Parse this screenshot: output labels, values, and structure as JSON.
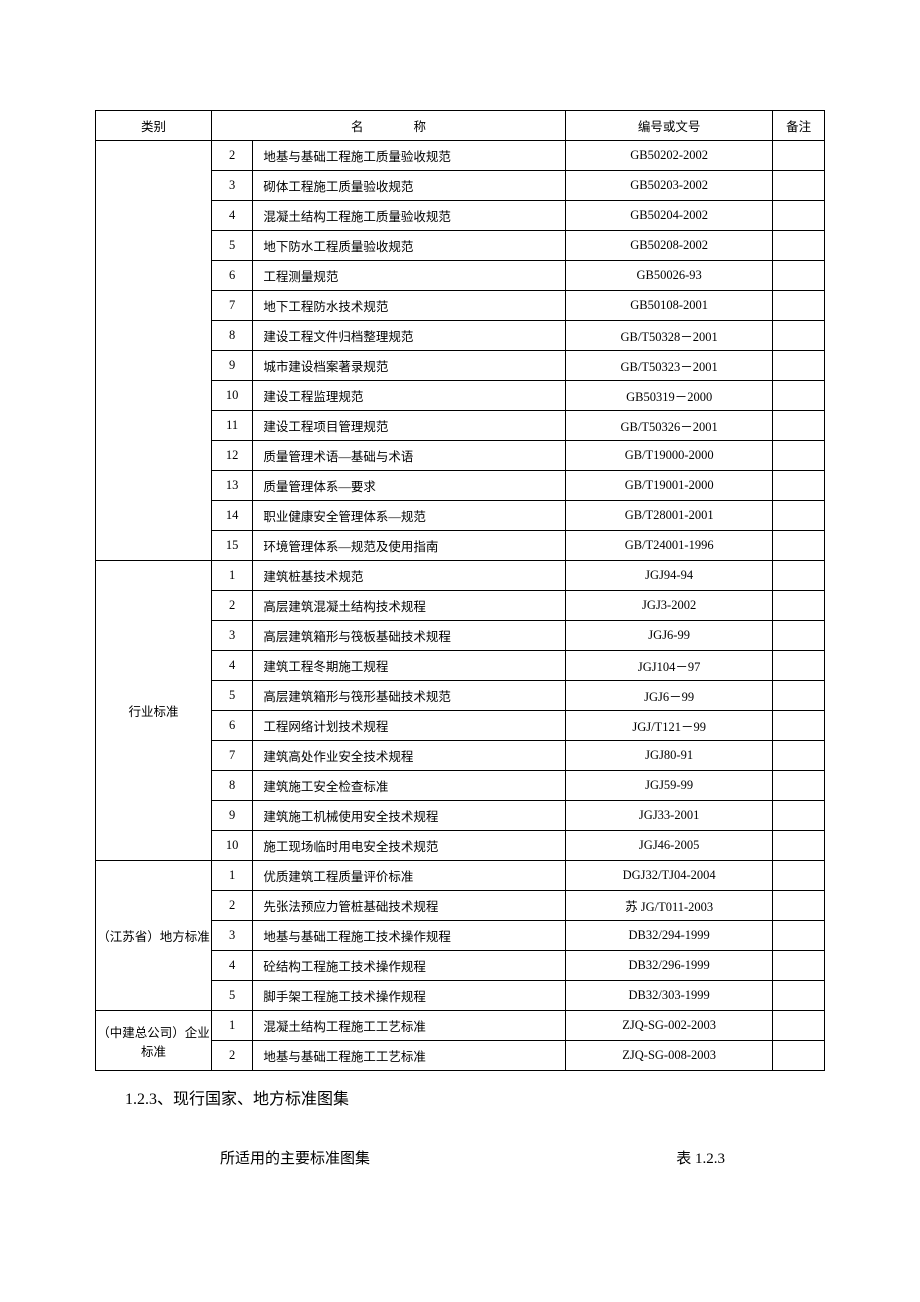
{
  "header": {
    "category": "类别",
    "name_char1": "名",
    "name_char2": "称",
    "code": "编号或文号",
    "remark": "备注"
  },
  "groups": [
    {
      "category": "",
      "rows": [
        {
          "num": "2",
          "name": "地基与基础工程施工质量验收规范",
          "code": "GB50202-2002"
        },
        {
          "num": "3",
          "name": "砌体工程施工质量验收规范",
          "code": "GB50203-2002"
        },
        {
          "num": "4",
          "name": "混凝土结构工程施工质量验收规范",
          "code": "GB50204-2002"
        },
        {
          "num": "5",
          "name": "地下防水工程质量验收规范",
          "code": "GB50208-2002"
        },
        {
          "num": "6",
          "name": "工程测量规范",
          "code": "GB50026-93"
        },
        {
          "num": "7",
          "name": "地下工程防水技术规范",
          "code": "GB50108-2001"
        },
        {
          "num": "8",
          "name": "建设工程文件归档整理规范",
          "code": "GB/T50328－2001"
        },
        {
          "num": "9",
          "name": "城市建设档案著录规范",
          "code": "GB/T50323－2001"
        },
        {
          "num": "10",
          "name": "建设工程监理规范",
          "code": "GB50319－2000"
        },
        {
          "num": "11",
          "name": "建设工程项目管理规范",
          "code": "GB/T50326－2001"
        },
        {
          "num": "12",
          "name": "质量管理术语—基础与术语",
          "code": "GB/T19000-2000"
        },
        {
          "num": "13",
          "name": "质量管理体系—要求",
          "code": "GB/T19001-2000"
        },
        {
          "num": "14",
          "name": "职业健康安全管理体系—规范",
          "code": "GB/T28001-2001"
        },
        {
          "num": "15",
          "name": "环境管理体系—规范及使用指南",
          "code": "GB/T24001-1996"
        }
      ]
    },
    {
      "category": "行业标准",
      "rows": [
        {
          "num": "1",
          "name": "建筑桩基技术规范",
          "code": "JGJ94-94"
        },
        {
          "num": "2",
          "name": "高层建筑混凝土结构技术规程",
          "code": "JGJ3-2002"
        },
        {
          "num": "3",
          "name": "高层建筑箱形与筏板基础技术规程",
          "code": "JGJ6-99"
        },
        {
          "num": "4",
          "name": "建筑工程冬期施工规程",
          "code": "JGJ104－97"
        },
        {
          "num": "5",
          "name": "高层建筑箱形与筏形基础技术规范",
          "code": "JGJ6－99"
        },
        {
          "num": "6",
          "name": "工程网络计划技术规程",
          "code": "JGJ/T121－99"
        },
        {
          "num": "7",
          "name": "建筑高处作业安全技术规程",
          "code": "JGJ80-91"
        },
        {
          "num": "8",
          "name": "建筑施工安全检查标准",
          "code": "JGJ59-99"
        },
        {
          "num": "9",
          "name": "建筑施工机械使用安全技术规程",
          "code": "JGJ33-2001"
        },
        {
          "num": "10",
          "name": "施工现场临时用电安全技术规范",
          "code": "JGJ46-2005"
        }
      ]
    },
    {
      "category": "（江苏省）地方标准",
      "rows": [
        {
          "num": "1",
          "name": "优质建筑工程质量评价标准",
          "code": "DGJ32/TJ04-2004"
        },
        {
          "num": "2",
          "name": "先张法预应力管桩基础技术规程",
          "code": "苏 JG/T011-2003"
        },
        {
          "num": "3",
          "name": "地基与基础工程施工技术操作规程",
          "code": "DB32/294-1999"
        },
        {
          "num": "4",
          "name": "砼结构工程施工技术操作规程",
          "code": "DB32/296-1999"
        },
        {
          "num": "5",
          "name": "脚手架工程施工技术操作规程",
          "code": "DB32/303-1999"
        }
      ]
    },
    {
      "category": "（中建总公司）企业标准",
      "rows": [
        {
          "num": "1",
          "name": "混凝土结构工程施工工艺标准",
          "code": "ZJQ-SG-002-2003"
        },
        {
          "num": "2",
          "name": "地基与基础工程施工工艺标准",
          "code": "ZJQ-SG-008-2003"
        }
      ]
    }
  ],
  "section_heading": "1.2.3、现行国家、地方标准图集",
  "caption_row": {
    "left": "所适用的主要标准图集",
    "right": "表 1.2.3"
  },
  "style": {
    "background": "#ffffff",
    "border_color": "#000000",
    "font_size_table": 12.5,
    "font_size_heading": 16,
    "font_size_caption": 15
  }
}
